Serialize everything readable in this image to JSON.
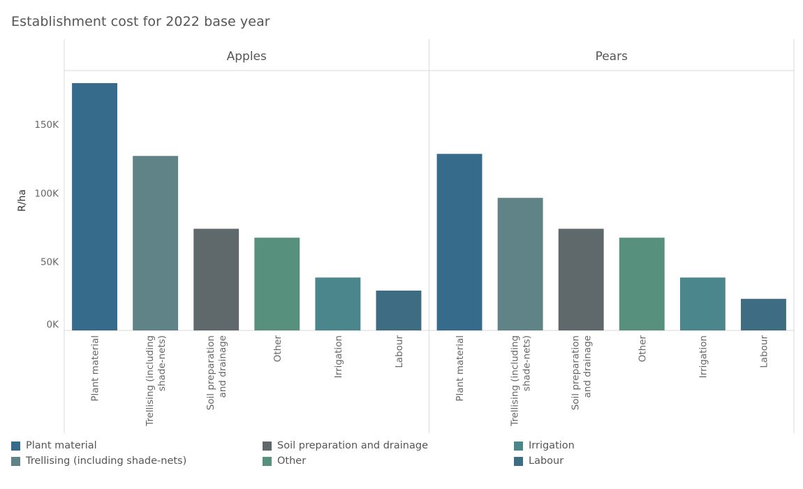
{
  "title": "Establishment cost for 2022 base year",
  "chart_data": {
    "type": "bar",
    "title": "Establishment cost for 2022 base year",
    "ylabel": "R/ha",
    "ylim": [
      0,
      190000
    ],
    "yticks": [
      0,
      50000,
      100000,
      150000
    ],
    "ytick_labels": [
      "0K",
      "50K",
      "100K",
      "150K"
    ],
    "grid": false,
    "legend_placement": "bottom",
    "categories": [
      "Plant material",
      "Trellising (including shade-nets)",
      "Soil preparation and drainage",
      "Other",
      "Irrigation",
      "Labour"
    ],
    "category_labels": [
      [
        "Plant material"
      ],
      [
        "Trellising (including",
        "shade-nets)"
      ],
      [
        "Soil preparation",
        "and drainage"
      ],
      [
        "Other"
      ],
      [
        "Irrigation"
      ],
      [
        "Labour"
      ]
    ],
    "colors": [
      "#376b8b",
      "#5f8387",
      "#5f696b",
      "#58907e",
      "#4b868d",
      "#3e6c82"
    ],
    "panels": [
      {
        "name": "Apples",
        "values": [
          180000,
          127000,
          74000,
          67500,
          38500,
          29000
        ]
      },
      {
        "name": "Pears",
        "values": [
          128500,
          96500,
          74000,
          67500,
          38500,
          23000
        ]
      }
    ]
  },
  "legend": {
    "items": [
      {
        "label": "Plant material",
        "color": "#376b8b"
      },
      {
        "label": "Trellising (including shade-nets)",
        "color": "#5f8387"
      },
      {
        "label": "Soil preparation and drainage",
        "color": "#5f696b"
      },
      {
        "label": "Other",
        "color": "#58907e"
      },
      {
        "label": "Irrigation",
        "color": "#4b868d"
      },
      {
        "label": "Labour",
        "color": "#3e6c82"
      }
    ]
  }
}
